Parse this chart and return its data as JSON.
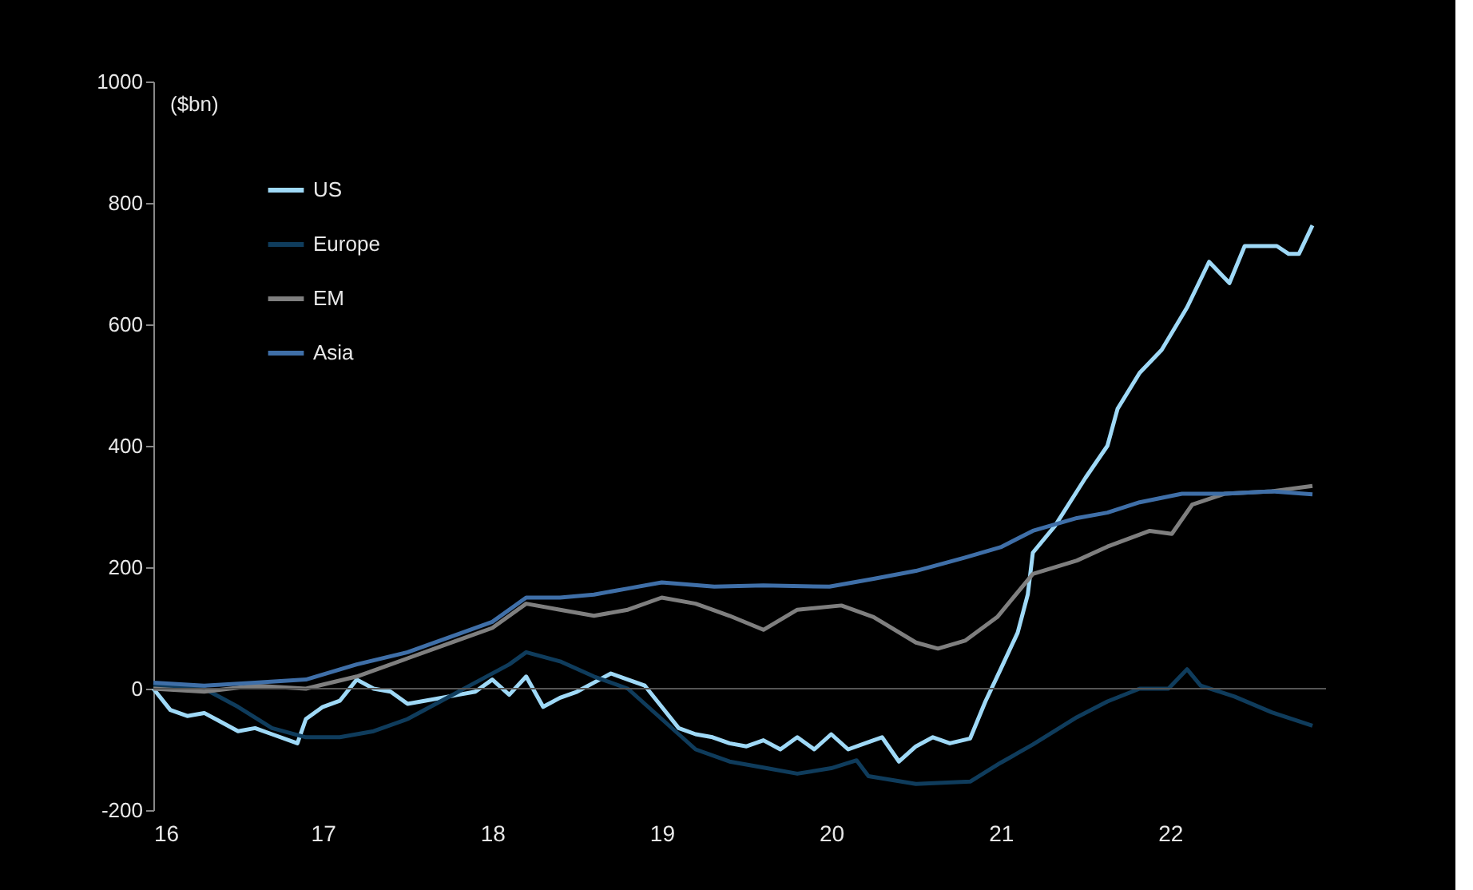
{
  "chart_data": {
    "type": "line",
    "ylabel": "($bn)",
    "xlim": [
      16,
      22.92
    ],
    "xticks": [
      16,
      17,
      18,
      19,
      20,
      21,
      22
    ],
    "ylim": [
      -200,
      1000
    ],
    "yticks": [
      -200,
      0,
      200,
      400,
      600,
      800,
      1000
    ],
    "grid": false,
    "legend": "top left",
    "line_style": "solid",
    "marker": "none",
    "ref_lines": [
      {
        "axis": "y",
        "value": 0,
        "color": "#555555"
      }
    ],
    "series": [
      {
        "name": "US",
        "color": "#9fd9f7",
        "x": [
          16.0,
          16.1,
          16.2,
          16.3,
          16.4,
          16.5,
          16.6,
          16.7,
          16.85,
          16.9,
          17.0,
          17.1,
          17.2,
          17.3,
          17.4,
          17.5,
          17.6,
          17.8,
          17.9,
          18.0,
          18.1,
          18.2,
          18.3,
          18.4,
          18.5,
          18.6,
          18.7,
          18.8,
          18.9,
          19.0,
          19.1,
          19.2,
          19.3,
          19.4,
          19.5,
          19.6,
          19.7,
          19.8,
          19.9,
          20.0,
          20.1,
          20.2,
          20.3,
          20.4,
          20.5,
          20.6,
          20.7,
          20.82,
          20.91,
          21.0,
          21.1,
          21.16,
          21.19,
          21.32,
          21.5,
          21.63,
          21.69,
          21.82,
          21.95,
          22.1,
          22.23,
          22.35,
          22.44,
          22.63,
          22.7,
          22.76,
          22.84
        ],
        "values": [
          0,
          -35,
          -45,
          -40,
          -55,
          -70,
          -65,
          -75,
          -90,
          -50,
          -30,
          -20,
          15,
          0,
          -5,
          -25,
          -20,
          -10,
          -5,
          15,
          -10,
          20,
          -30,
          -15,
          -5,
          10,
          25,
          15,
          5,
          -30,
          -65,
          -75,
          -80,
          -90,
          -95,
          -85,
          -100,
          -80,
          -100,
          -75,
          -100,
          -90,
          -80,
          -120,
          -95,
          -80,
          -90,
          -82,
          -21,
          32,
          92,
          155,
          224,
          268,
          347,
          400,
          461,
          520,
          558,
          628,
          703,
          668,
          729,
          729,
          716,
          716,
          763
        ]
      },
      {
        "name": "Europe",
        "color": "#0f3c5c",
        "x": [
          16.0,
          16.3,
          16.5,
          16.7,
          16.9,
          17.1,
          17.3,
          17.5,
          17.7,
          17.9,
          18.1,
          18.2,
          18.4,
          18.6,
          18.8,
          19.0,
          19.2,
          19.4,
          19.6,
          19.8,
          20.0,
          20.15,
          20.22,
          20.5,
          20.82,
          21.0,
          21.19,
          21.45,
          21.63,
          21.82,
          21.99,
          22.1,
          22.18,
          22.38,
          22.6,
          22.84
        ],
        "values": [
          5,
          0,
          -30,
          -65,
          -80,
          -80,
          -70,
          -50,
          -20,
          10,
          40,
          60,
          45,
          20,
          0,
          -50,
          -100,
          -120,
          -130,
          -140,
          -131,
          -118,
          -144,
          -157,
          -153,
          -122,
          -92,
          -47,
          -21,
          0,
          0,
          32,
          5,
          -13,
          -39,
          -61
        ]
      },
      {
        "name": "EM",
        "color": "#7f7f7f",
        "x": [
          16.0,
          16.3,
          16.6,
          16.9,
          17.2,
          17.5,
          17.8,
          18.0,
          18.2,
          18.4,
          18.6,
          18.8,
          19.0,
          19.2,
          19.4,
          19.6,
          19.8,
          20.06,
          20.25,
          20.5,
          20.63,
          20.79,
          20.98,
          21.19,
          21.45,
          21.63,
          21.88,
          22.01,
          22.13,
          22.32,
          22.6,
          22.84
        ],
        "values": [
          0,
          -5,
          5,
          0,
          20,
          50,
          80,
          100,
          140,
          130,
          120,
          130,
          150,
          140,
          120,
          97,
          130,
          137,
          118,
          76,
          66,
          79,
          118,
          189,
          211,
          234,
          260,
          255,
          303,
          321,
          325,
          334
        ]
      },
      {
        "name": "Asia",
        "color": "#3f6fa8",
        "x": [
          16.0,
          16.3,
          16.6,
          16.9,
          17.2,
          17.5,
          17.8,
          18.0,
          18.2,
          18.4,
          18.6,
          18.8,
          19.0,
          19.31,
          19.6,
          19.99,
          20.25,
          20.5,
          20.79,
          21.0,
          21.19,
          21.45,
          21.63,
          21.82,
          22.07,
          22.32,
          22.6,
          22.84
        ],
        "values": [
          10,
          5,
          10,
          15,
          40,
          60,
          90,
          110,
          150,
          150,
          155,
          165,
          175,
          168,
          170,
          168,
          181,
          194,
          216,
          233,
          260,
          281,
          290,
          307,
          321,
          321,
          325,
          320
        ]
      }
    ]
  }
}
